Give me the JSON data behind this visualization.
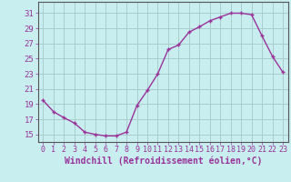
{
  "x": [
    0,
    1,
    2,
    3,
    4,
    5,
    6,
    7,
    8,
    9,
    10,
    11,
    12,
    13,
    14,
    15,
    16,
    17,
    18,
    19,
    20,
    21,
    22,
    23
  ],
  "y": [
    19.5,
    18.0,
    17.2,
    16.5,
    15.3,
    15.0,
    14.8,
    14.8,
    15.3,
    18.8,
    20.8,
    23.0,
    26.2,
    26.8,
    28.5,
    29.2,
    30.0,
    30.5,
    31.0,
    31.0,
    30.8,
    28.0,
    25.3,
    23.2
  ],
  "line_color": "#993399",
  "marker": "+",
  "bg_color": "#c8eef0",
  "grid_color": "#aacccc",
  "xlabel": "Windchill (Refroidissement éolien,°C)",
  "xlabel_color": "#993399",
  "ylabel_ticks": [
    15,
    17,
    19,
    21,
    23,
    25,
    27,
    29,
    31
  ],
  "xtick_labels": [
    "0",
    "1",
    "2",
    "3",
    "4",
    "5",
    "6",
    "7",
    "8",
    "9",
    "10",
    "11",
    "12",
    "13",
    "14",
    "15",
    "16",
    "17",
    "18",
    "19",
    "20",
    "21",
    "22",
    "23"
  ],
  "ylim": [
    14.0,
    32.5
  ],
  "xlim": [
    -0.5,
    23.5
  ],
  "tick_color": "#993399",
  "axis_color": "#555555",
  "fontsize_xlabel": 7.0,
  "fontsize_ytick": 6.5,
  "fontsize_xtick": 6.0,
  "markersize": 3.5,
  "linewidth": 1.0
}
